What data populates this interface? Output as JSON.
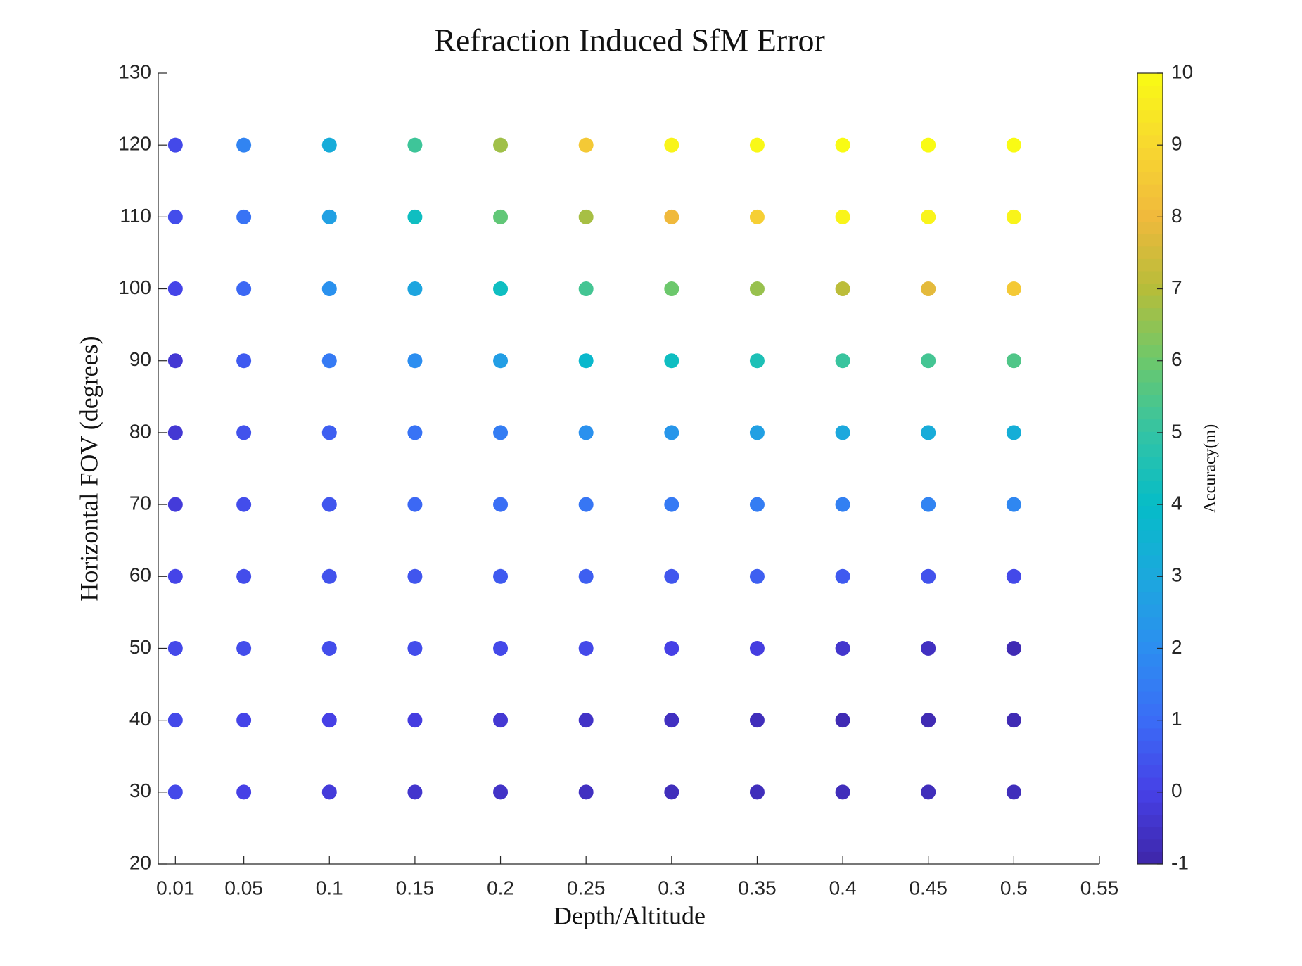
{
  "chart_data": {
    "type": "scatter",
    "title": "Refraction Induced SfM Error",
    "x_label": "Depth/Altitude",
    "y_label": "Horizontal FOV (degrees)",
    "colorbar_label": "Accuracy(m)",
    "xlim": [
      0,
      0.55
    ],
    "xticks": [
      0.01,
      0.05,
      0.1,
      0.15,
      0.2,
      0.25,
      0.3,
      0.35,
      0.4,
      0.45,
      0.5,
      0.55
    ],
    "ylim": [
      20,
      130
    ],
    "yticks": [
      20,
      30,
      40,
      50,
      60,
      70,
      80,
      90,
      100,
      110,
      120,
      130
    ],
    "clim": [
      -1,
      10
    ],
    "cticks": [
      -1,
      0,
      1,
      2,
      3,
      4,
      5,
      6,
      7,
      8,
      9,
      10
    ],
    "colormap": [
      "#3e26a8",
      "#4640e6",
      "#3b6cf6",
      "#2c8ef0",
      "#1ca8dd",
      "#06bcc8",
      "#33c4a4",
      "#6cc86c",
      "#b6bd3a",
      "#f0b93c",
      "#f8d830",
      "#f9fb14"
    ],
    "x": [
      0.01,
      0.05,
      0.1,
      0.15,
      0.2,
      0.25,
      0.3,
      0.35,
      0.4,
      0.45,
      0.5,
      0.01,
      0.05,
      0.1,
      0.15,
      0.2,
      0.25,
      0.3,
      0.35,
      0.4,
      0.45,
      0.5,
      0.01,
      0.05,
      0.1,
      0.15,
      0.2,
      0.25,
      0.3,
      0.35,
      0.4,
      0.45,
      0.5,
      0.01,
      0.05,
      0.1,
      0.15,
      0.2,
      0.25,
      0.3,
      0.35,
      0.4,
      0.45,
      0.5,
      0.01,
      0.05,
      0.1,
      0.15,
      0.2,
      0.25,
      0.3,
      0.35,
      0.4,
      0.45,
      0.5,
      0.01,
      0.05,
      0.1,
      0.15,
      0.2,
      0.25,
      0.3,
      0.35,
      0.4,
      0.45,
      0.5,
      0.01,
      0.05,
      0.1,
      0.15,
      0.2,
      0.25,
      0.3,
      0.35,
      0.4,
      0.45,
      0.5,
      0.01,
      0.05,
      0.1,
      0.15,
      0.2,
      0.25,
      0.3,
      0.35,
      0.4,
      0.45,
      0.5,
      0.01,
      0.05,
      0.1,
      0.15,
      0.2,
      0.25,
      0.3,
      0.35,
      0.4,
      0.45,
      0.5,
      0.01,
      0.05,
      0.1,
      0.15,
      0.2,
      0.25,
      0.3,
      0.35,
      0.4,
      0.45,
      0.5
    ],
    "y": [
      120,
      120,
      120,
      120,
      120,
      120,
      120,
      120,
      120,
      120,
      120,
      110,
      110,
      110,
      110,
      110,
      110,
      110,
      110,
      110,
      110,
      110,
      100,
      100,
      100,
      100,
      100,
      100,
      100,
      100,
      100,
      100,
      100,
      90,
      90,
      90,
      90,
      90,
      90,
      90,
      90,
      90,
      90,
      90,
      80,
      80,
      80,
      80,
      80,
      80,
      80,
      80,
      80,
      80,
      80,
      70,
      70,
      70,
      70,
      70,
      70,
      70,
      70,
      70,
      70,
      70,
      60,
      60,
      60,
      60,
      60,
      60,
      60,
      60,
      60,
      60,
      60,
      50,
      50,
      50,
      50,
      50,
      50,
      50,
      50,
      50,
      50,
      50,
      40,
      40,
      40,
      40,
      40,
      40,
      40,
      40,
      40,
      40,
      40,
      30,
      30,
      30,
      30,
      30,
      30,
      30,
      30,
      30,
      30,
      30
    ],
    "values": [
      0.2,
      1.7,
      3.2,
      5.2,
      6.7,
      8.5,
      9.8,
      9.9,
      10,
      10,
      10,
      0.3,
      1.2,
      2.7,
      4.2,
      5.8,
      6.8,
      8,
      8.7,
      9.8,
      9.8,
      9.8,
      0.1,
      0.9,
      2.1,
      2.9,
      4.2,
      5.3,
      6,
      6.6,
      7.1,
      7.8,
      8.5,
      -0.3,
      0.6,
      1.4,
      2,
      2.6,
      3.8,
      4.2,
      4.5,
      5.1,
      5.3,
      5.5,
      -0.3,
      0.4,
      0.7,
      1.2,
      1.5,
      2.1,
      2.3,
      2.7,
      3,
      3.2,
      3.3,
      -0.2,
      0.3,
      0.5,
      0.9,
      1.1,
      1.3,
      1.4,
      1.5,
      1.6,
      1.7,
      1.8,
      0.1,
      0.3,
      0.4,
      0.5,
      0.6,
      0.7,
      0.5,
      0.7,
      0.6,
      0.4,
      0.2,
      0.2,
      0.3,
      0.3,
      0.3,
      0.2,
      0.2,
      0,
      -0.1,
      -0.4,
      -0.6,
      -0.8,
      0.2,
      0.1,
      0,
      -0.1,
      -0.3,
      -0.5,
      -0.6,
      -0.7,
      -0.8,
      -0.8,
      -0.8,
      0.2,
      0,
      -0.2,
      -0.4,
      -0.5,
      -0.6,
      -0.7,
      -0.7,
      -0.7,
      -0.7,
      -0.7
    ]
  }
}
